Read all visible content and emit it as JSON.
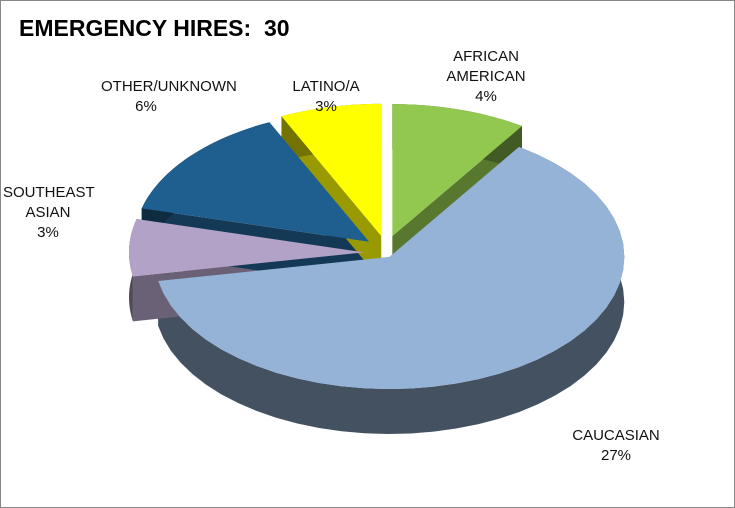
{
  "chart_data": {
    "type": "pie3d",
    "title": "EMERGENCY HIRES:  30",
    "categories": [
      "AFRICAN AMERICAN",
      "CAUCASIAN",
      "SOUTHEAST ASIAN",
      "OTHER/UNKNOWN",
      "LATINO/A"
    ],
    "values": [
      4,
      27,
      3,
      6,
      3
    ],
    "value_labels": [
      "4%",
      "27%",
      "3%",
      "6%",
      "3%"
    ],
    "colors": [
      "#92c850",
      "#95b3d7",
      "#b3a2c7",
      "#1f5f8f",
      "#ffff00"
    ]
  }
}
